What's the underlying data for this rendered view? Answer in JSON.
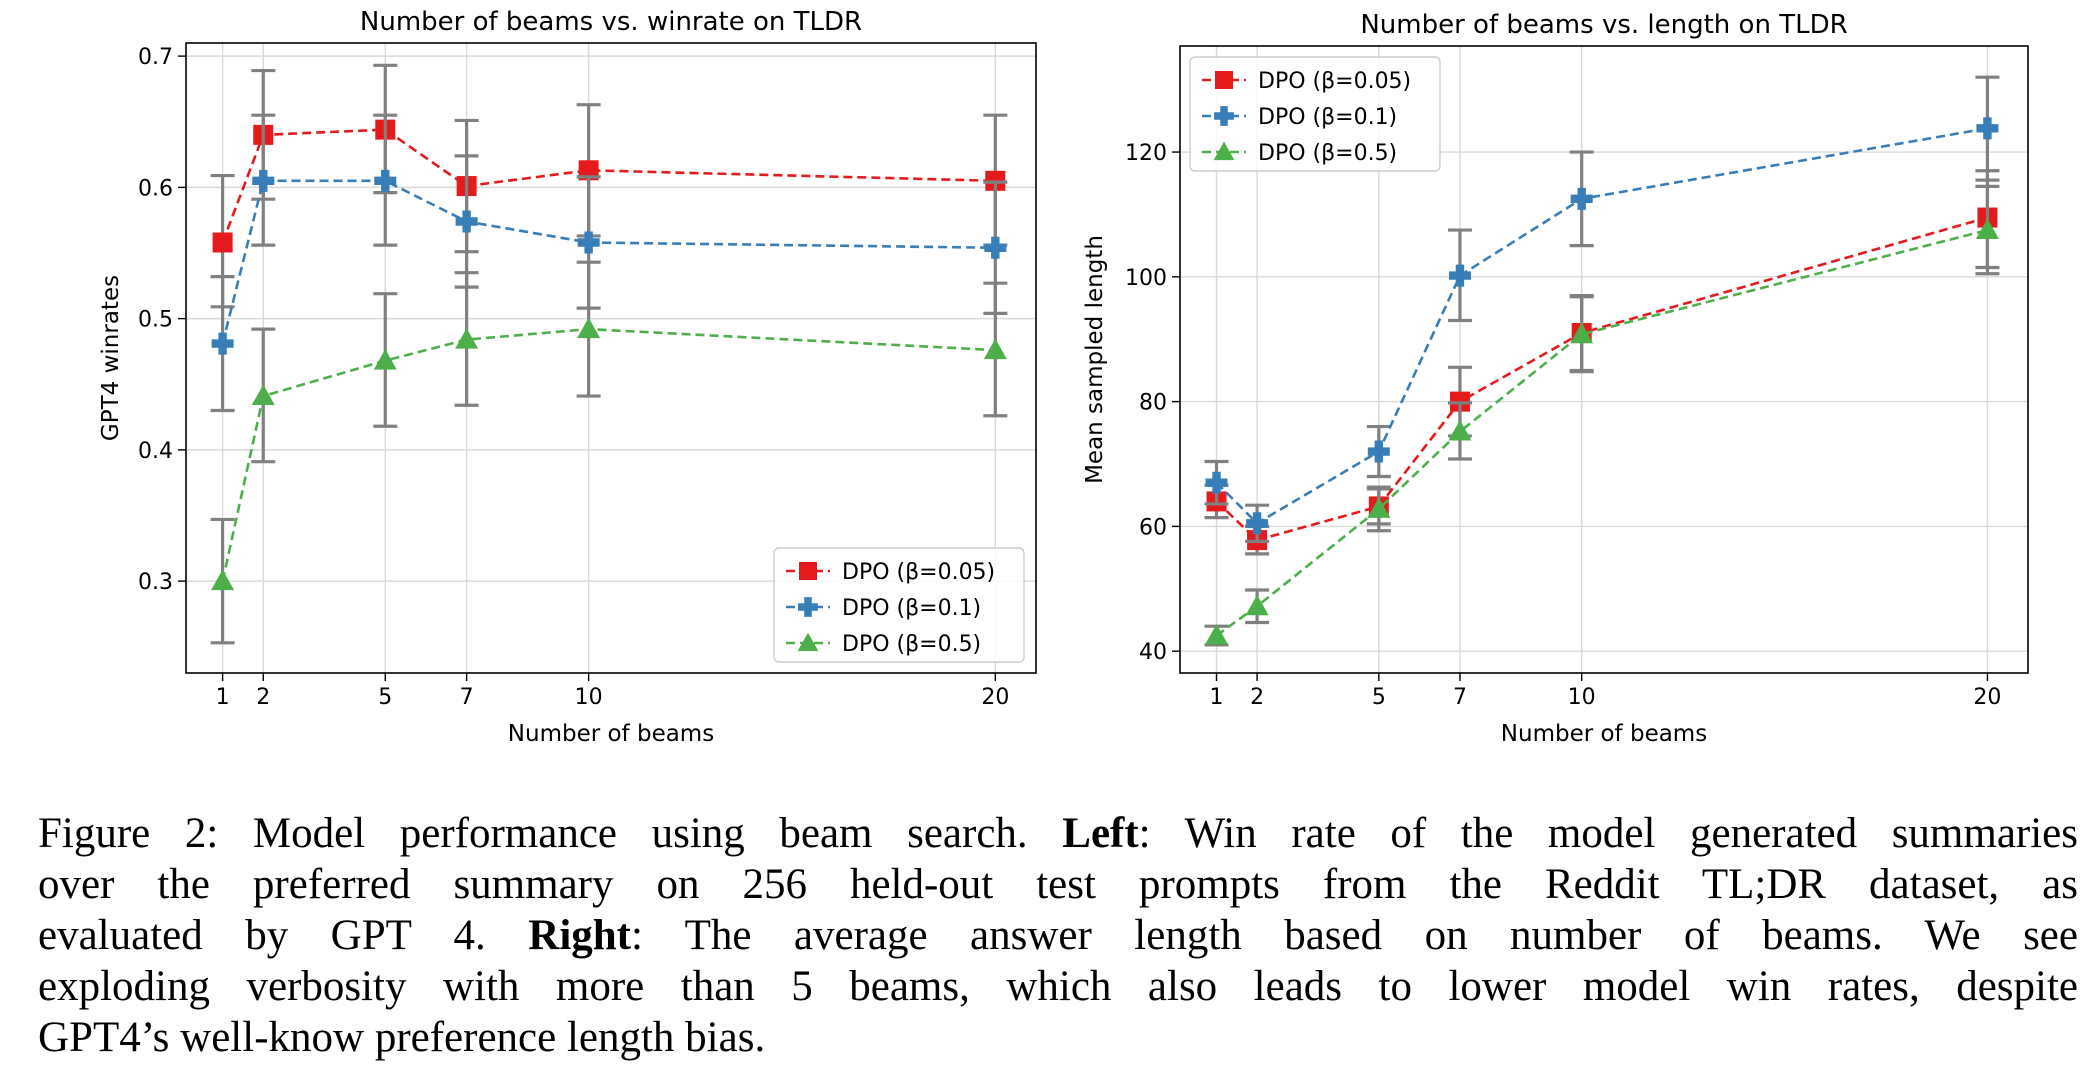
{
  "chart_data": [
    {
      "type": "line",
      "title": "Number of beams vs. winrate on TLDR",
      "xlabel": "Number of beams",
      "ylabel": "GPT4 winrates",
      "x": [
        1,
        2,
        5,
        7,
        10,
        20
      ],
      "xticks": [
        "1",
        "2",
        "5",
        "7",
        "10",
        "20"
      ],
      "xlim": [
        0.1,
        21.0
      ],
      "ylim": [
        0.23,
        0.71
      ],
      "yticks": [
        "0.3",
        "0.4",
        "0.5",
        "0.6",
        "0.7"
      ],
      "grid": true,
      "legend_position": "lower-right",
      "series": [
        {
          "name": "DPO (β=0.05)",
          "color": "#e41a1c",
          "marker": "square",
          "values": [
            0.558,
            0.64,
            0.644,
            0.601,
            0.613,
            0.605
          ],
          "err_low": [
            0.509,
            0.591,
            0.596,
            0.551,
            0.563,
            0.556
          ],
          "err_high": [
            0.609,
            0.689,
            0.693,
            0.651,
            0.663,
            0.655
          ]
        },
        {
          "name": "DPO (β=0.1)",
          "color": "#377eb8",
          "marker": "plus",
          "values": [
            0.481,
            0.605,
            0.605,
            0.574,
            0.558,
            0.554
          ],
          "err_low": [
            0.43,
            0.556,
            0.556,
            0.524,
            0.508,
            0.504
          ],
          "err_high": [
            0.532,
            0.655,
            0.655,
            0.624,
            0.608,
            0.604
          ]
        },
        {
          "name": "DPO (β=0.5)",
          "color": "#4daf4a",
          "marker": "triangle",
          "values": [
            0.3,
            0.441,
            0.468,
            0.484,
            0.492,
            0.476
          ],
          "err_low": [
            0.253,
            0.391,
            0.418,
            0.434,
            0.441,
            0.426
          ],
          "err_high": [
            0.347,
            0.492,
            0.519,
            0.535,
            0.543,
            0.527
          ]
        }
      ]
    },
    {
      "type": "line",
      "title": "Number of beams vs. length on TLDR",
      "xlabel": "Number of beams",
      "ylabel": "Mean sampled length",
      "x": [
        1,
        2,
        5,
        7,
        10,
        20
      ],
      "xticks": [
        "1",
        "2",
        "5",
        "7",
        "10",
        "20"
      ],
      "xlim": [
        0.1,
        21.0
      ],
      "ylim": [
        36.5,
        137.0
      ],
      "yticks": [
        "40",
        "60",
        "80",
        "100",
        "120"
      ],
      "grid": true,
      "legend_position": "upper-left",
      "series": [
        {
          "name": "DPO (β=0.05)",
          "color": "#e41a1c",
          "marker": "square",
          "values": [
            64.0,
            57.8,
            63.2,
            80.0,
            91.0,
            109.5
          ],
          "err_low": [
            61.4,
            55.6,
            60.4,
            74.5,
            85.0,
            101.5
          ],
          "err_high": [
            66.6,
            60.0,
            66.0,
            85.5,
            97.0,
            117.0
          ]
        },
        {
          "name": "DPO (β=0.1)",
          "color": "#377eb8",
          "marker": "plus",
          "values": [
            67.0,
            60.5,
            72.0,
            100.2,
            112.5,
            123.8
          ],
          "err_low": [
            63.6,
            57.6,
            68.0,
            93.0,
            105.0,
            115.5
          ],
          "err_high": [
            70.4,
            63.4,
            76.0,
            107.5,
            120.0,
            132.0
          ]
        },
        {
          "name": "DPO (β=0.5)",
          "color": "#4daf4a",
          "marker": "triangle",
          "values": [
            42.5,
            47.2,
            62.8,
            75.2,
            90.8,
            107.5
          ],
          "err_low": [
            41.0,
            44.6,
            59.3,
            70.8,
            84.8,
            100.5
          ],
          "err_high": [
            44.0,
            49.8,
            66.3,
            79.8,
            96.8,
            114.5
          ]
        }
      ]
    }
  ],
  "caption": {
    "lines": [
      [
        {
          "t": "Figure 2: Model performance using beam search. "
        },
        {
          "t": "Left",
          "b": true
        },
        {
          "t": ": Win rate of the model generated summaries"
        }
      ],
      [
        {
          "t": "over the preferred summary on 256 held-out test prompts from the Reddit TL;DR dataset, as"
        }
      ],
      [
        {
          "t": "evaluated by GPT 4. "
        },
        {
          "t": "Right",
          "b": true
        },
        {
          "t": ": The average answer length based on number of beams. We see"
        }
      ],
      [
        {
          "t": "exploding verbosity with more than 5 beams, which also leads to lower model win rates, despite"
        }
      ],
      [
        {
          "t": "GPT4’s well-know preference length bias."
        }
      ]
    ]
  }
}
